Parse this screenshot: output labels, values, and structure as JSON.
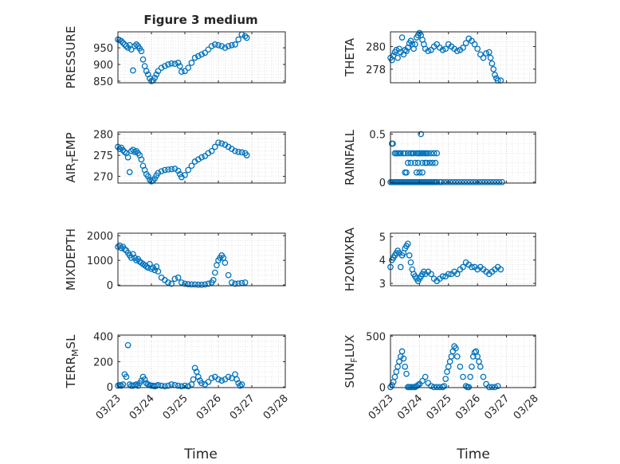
{
  "figure": {
    "title": "Figure 3 medium",
    "xlabel": "Time"
  },
  "chart_data": [
    {
      "id": "pressure",
      "type": "scatter",
      "ylabel": "PRESSURE",
      "ylabel_sub": null,
      "ylabel_tail": null,
      "title": "Figure 3 medium",
      "ylim": [
        845,
        998
      ],
      "yticks": [
        850,
        900,
        950
      ],
      "xlim": [
        "03/23",
        "03/28"
      ],
      "xticks": [
        "03/23",
        "03/24",
        "03/25",
        "03/26",
        "03/27",
        "03/28"
      ],
      "xticklabels_visible": false,
      "grid": true,
      "marker": "open circle",
      "color": "#0072bd",
      "x": [
        0.0,
        0.05,
        0.1,
        0.15,
        0.2,
        0.25,
        0.3,
        0.35,
        0.4,
        0.45,
        0.5,
        0.55,
        0.6,
        0.65,
        0.7,
        0.75,
        0.8,
        0.85,
        0.9,
        0.95,
        1.0,
        1.05,
        1.1,
        1.15,
        1.2,
        1.3,
        1.4,
        1.5,
        1.6,
        1.7,
        1.8,
        1.85,
        1.9,
        2.0,
        2.1,
        2.2,
        2.3,
        2.4,
        2.5,
        2.6,
        2.7,
        2.8,
        2.9,
        3.0,
        3.1,
        3.2,
        3.3,
        3.4,
        3.5,
        3.6,
        3.7,
        3.8,
        3.85
      ],
      "y": [
        975,
        973,
        970,
        965,
        960,
        955,
        950,
        958,
        945,
        882,
        955,
        960,
        955,
        948,
        940,
        915,
        895,
        880,
        870,
        858,
        850,
        852,
        860,
        870,
        880,
        890,
        895,
        900,
        903,
        902,
        905,
        895,
        878,
        880,
        890,
        905,
        920,
        925,
        930,
        935,
        945,
        955,
        960,
        958,
        955,
        950,
        955,
        958,
        960,
        975,
        990,
        985,
        980
      ]
    },
    {
      "id": "theta",
      "type": "scatter",
      "ylabel": "THETA",
      "ylabel_sub": null,
      "ylabel_tail": null,
      "ylim": [
        276.8,
        281.3
      ],
      "yticks": [
        278,
        280
      ],
      "xlim": [
        "03/23",
        "03/28"
      ],
      "xticks": [
        "03/23",
        "03/24",
        "03/25",
        "03/26",
        "03/27",
        "03/28"
      ],
      "xticklabels_visible": false,
      "grid": true,
      "marker": "open circle",
      "color": "#0072bd",
      "x": [
        0.0,
        0.05,
        0.1,
        0.15,
        0.2,
        0.25,
        0.3,
        0.35,
        0.4,
        0.45,
        0.5,
        0.55,
        0.6,
        0.65,
        0.7,
        0.75,
        0.8,
        0.85,
        0.9,
        0.95,
        1.0,
        1.05,
        1.1,
        1.15,
        1.2,
        1.3,
        1.4,
        1.5,
        1.6,
        1.7,
        1.8,
        1.9,
        2.0,
        2.1,
        2.2,
        2.3,
        2.4,
        2.5,
        2.6,
        2.7,
        2.8,
        2.9,
        3.0,
        3.1,
        3.2,
        3.3,
        3.4,
        3.45,
        3.5,
        3.55,
        3.6,
        3.65,
        3.7,
        3.8
      ],
      "y": [
        279.0,
        278.8,
        279.2,
        279.5,
        279.7,
        279.0,
        279.8,
        279.5,
        280.8,
        279.3,
        279.7,
        279.6,
        279.9,
        280.3,
        280.5,
        280.2,
        279.8,
        280.2,
        280.8,
        281.0,
        281.2,
        281.0,
        280.6,
        280.2,
        279.8,
        279.6,
        279.7,
        280.0,
        280.2,
        279.9,
        279.7,
        279.8,
        280.2,
        280.0,
        279.8,
        279.6,
        279.7,
        279.9,
        280.3,
        280.7,
        280.5,
        280.2,
        279.8,
        279.3,
        279.0,
        279.4,
        279.5,
        279.0,
        278.5,
        278.0,
        277.5,
        277.2,
        277.0,
        277.0
      ]
    },
    {
      "id": "air_temp",
      "type": "scatter",
      "ylabel": "AIR",
      "ylabel_sub": "T",
      "ylabel_tail": "EMP",
      "ylim": [
        268.4,
        280.5
      ],
      "yticks": [
        270,
        275,
        280
      ],
      "xlim": [
        "03/23",
        "03/28"
      ],
      "xticks": [
        "03/23",
        "03/24",
        "03/25",
        "03/26",
        "03/27",
        "03/28"
      ],
      "xticklabels_visible": false,
      "grid": true,
      "marker": "open circle",
      "color": "#0072bd",
      "x": [
        0.0,
        0.05,
        0.1,
        0.15,
        0.2,
        0.25,
        0.3,
        0.35,
        0.4,
        0.45,
        0.5,
        0.55,
        0.6,
        0.65,
        0.7,
        0.75,
        0.8,
        0.85,
        0.9,
        0.95,
        1.0,
        1.05,
        1.1,
        1.15,
        1.2,
        1.3,
        1.4,
        1.5,
        1.6,
        1.7,
        1.8,
        1.85,
        1.9,
        2.0,
        2.1,
        2.2,
        2.3,
        2.4,
        2.5,
        2.6,
        2.7,
        2.8,
        2.9,
        3.0,
        3.1,
        3.2,
        3.3,
        3.4,
        3.5,
        3.6,
        3.7,
        3.8,
        3.85
      ],
      "y": [
        277.0,
        276.5,
        276.8,
        276.2,
        275.8,
        275.5,
        274.5,
        271.0,
        276.0,
        276.3,
        275.8,
        276.0,
        275.5,
        275.0,
        274.0,
        272.5,
        271.5,
        270.5,
        270.0,
        269.2,
        268.8,
        269.0,
        269.5,
        270.2,
        270.8,
        271.2,
        271.5,
        271.6,
        271.7,
        271.8,
        271.3,
        270.5,
        269.8,
        270.3,
        271.5,
        272.5,
        273.5,
        274.0,
        274.5,
        274.8,
        275.5,
        276.0,
        277.0,
        278.0,
        277.8,
        277.5,
        277.0,
        276.5,
        276.0,
        275.8,
        275.7,
        275.5,
        275.0
      ]
    },
    {
      "id": "rainfall",
      "type": "scatter",
      "ylabel": "RAINFALL",
      "ylabel_sub": null,
      "ylabel_tail": null,
      "ylim": [
        -0.01,
        0.52
      ],
      "yticks": [
        0,
        0.5
      ],
      "xlim": [
        "03/23",
        "03/28"
      ],
      "xticks": [
        "03/23",
        "03/24",
        "03/25",
        "03/26",
        "03/27",
        "03/28"
      ],
      "xticklabels_visible": false,
      "grid": true,
      "marker": "open circle",
      "color": "#0072bd",
      "x": [
        0.0,
        0.05,
        0.1,
        0.15,
        0.2,
        0.25,
        0.3,
        0.35,
        0.4,
        0.45,
        0.5,
        0.55,
        0.6,
        0.65,
        0.7,
        0.75,
        0.8,
        0.85,
        0.9,
        0.95,
        1.0,
        1.05,
        1.1,
        1.15,
        1.2,
        1.25,
        1.3,
        1.35,
        1.4,
        1.45,
        1.5,
        1.55,
        1.6,
        1.7,
        0.05,
        0.08,
        0.15,
        0.2,
        0.25,
        0.3,
        0.35,
        0.45,
        0.5,
        0.6,
        0.7,
        0.75,
        0.8,
        0.9,
        0.95,
        1.0,
        1.05,
        1.1,
        1.15,
        1.2,
        1.25,
        1.3,
        1.4,
        1.5,
        1.6,
        0.6,
        0.7,
        0.85,
        0.95,
        1.1,
        1.2,
        1.25,
        1.35,
        1.45,
        1.55,
        0.5,
        0.55,
        0.9,
        1.0,
        1.1,
        1.75,
        1.85,
        1.95,
        2.05,
        2.15,
        2.25,
        2.35,
        2.45,
        2.55,
        2.65,
        2.75,
        2.85,
        2.95,
        3.05,
        3.15,
        3.25,
        3.35,
        3.45,
        3.55,
        3.65,
        3.75,
        3.85
      ],
      "y": [
        0,
        0,
        0,
        0,
        0,
        0,
        0,
        0,
        0,
        0,
        0,
        0,
        0,
        0,
        0,
        0,
        0,
        0,
        0,
        0,
        0,
        0,
        0,
        0,
        0,
        0,
        0,
        0,
        0,
        0,
        0,
        0,
        0,
        0,
        0.4,
        0.4,
        0.3,
        0.3,
        0.3,
        0.3,
        0.3,
        0.3,
        0.3,
        0.3,
        0.3,
        0.3,
        0.3,
        0.3,
        0.3,
        0.3,
        0.3,
        0.3,
        0.3,
        0.3,
        0.3,
        0.3,
        0.3,
        0.3,
        0.3,
        0.2,
        0.2,
        0.2,
        0.2,
        0.2,
        0.2,
        0.2,
        0.2,
        0.2,
        0.2,
        0.1,
        0.1,
        0.1,
        0.1,
        0.1,
        0,
        0,
        0,
        0,
        0,
        0,
        0,
        0,
        0,
        0,
        0,
        0,
        0,
        0,
        0,
        0,
        0,
        0,
        0,
        0,
        0,
        0
      ],
      "outliers": [
        {
          "x": 1.05,
          "y": 0.5
        }
      ]
    },
    {
      "id": "mixdepth",
      "type": "scatter",
      "ylabel": "MIXDEPTH",
      "ylabel_sub": null,
      "ylabel_tail": null,
      "ylim": [
        -30,
        2100
      ],
      "yticks": [
        0,
        1000,
        2000
      ],
      "xlim": [
        "03/23",
        "03/28"
      ],
      "xticks": [
        "03/23",
        "03/24",
        "03/25",
        "03/26",
        "03/27",
        "03/28"
      ],
      "xticklabels_visible": false,
      "grid": true,
      "marker": "open circle",
      "color": "#0072bd",
      "x": [
        0.0,
        0.05,
        0.1,
        0.15,
        0.2,
        0.25,
        0.3,
        0.35,
        0.4,
        0.45,
        0.5,
        0.55,
        0.6,
        0.65,
        0.7,
        0.75,
        0.8,
        0.85,
        0.9,
        0.95,
        1.0,
        1.05,
        1.1,
        1.15,
        1.2,
        1.3,
        1.4,
        1.5,
        1.6,
        1.7,
        1.8,
        1.9,
        2.0,
        2.1,
        2.2,
        2.3,
        2.4,
        2.5,
        2.6,
        2.7,
        2.8,
        2.85,
        2.9,
        2.95,
        3.0,
        3.05,
        3.1,
        3.15,
        3.2,
        3.3,
        3.4,
        3.5,
        3.6,
        3.7,
        3.8
      ],
      "y": [
        1550,
        1600,
        1500,
        1550,
        1450,
        1400,
        1300,
        1200,
        1100,
        1250,
        1100,
        1000,
        1050,
        950,
        900,
        850,
        800,
        750,
        700,
        850,
        650,
        700,
        600,
        750,
        550,
        300,
        200,
        100,
        50,
        250,
        300,
        100,
        50,
        30,
        20,
        20,
        10,
        10,
        20,
        50,
        100,
        200,
        500,
        800,
        1000,
        1100,
        1200,
        1100,
        900,
        400,
        100,
        50,
        60,
        80,
        100
      ]
    },
    {
      "id": "h2omixra",
      "type": "scatter",
      "ylabel": "H2OMIXRA",
      "ylabel_sub": null,
      "ylabel_tail": null,
      "ylim": [
        2.9,
        5.15
      ],
      "yticks": [
        3,
        4,
        5
      ],
      "xlim": [
        "03/23",
        "03/28"
      ],
      "xticks": [
        "03/23",
        "03/24",
        "03/25",
        "03/26",
        "03/27",
        "03/28"
      ],
      "xticklabels_visible": false,
      "grid": true,
      "marker": "open circle",
      "color": "#0072bd",
      "x": [
        0.0,
        0.05,
        0.1,
        0.15,
        0.2,
        0.25,
        0.3,
        0.35,
        0.4,
        0.45,
        0.5,
        0.55,
        0.6,
        0.65,
        0.7,
        0.75,
        0.8,
        0.85,
        0.9,
        0.95,
        1.0,
        1.05,
        1.1,
        1.15,
        1.2,
        1.3,
        1.4,
        1.5,
        1.6,
        1.7,
        1.8,
        1.9,
        2.0,
        2.1,
        2.2,
        2.3,
        2.4,
        2.5,
        2.6,
        2.7,
        2.8,
        2.9,
        3.0,
        3.1,
        3.2,
        3.3,
        3.4,
        3.5,
        3.6,
        3.7,
        3.8
      ],
      "y": [
        3.7,
        4.0,
        4.1,
        4.2,
        4.3,
        4.4,
        4.3,
        3.7,
        4.2,
        4.3,
        4.5,
        4.6,
        4.7,
        4.2,
        3.9,
        3.6,
        3.4,
        3.3,
        3.2,
        3.1,
        3.2,
        3.3,
        3.4,
        3.5,
        3.4,
        3.5,
        3.4,
        3.2,
        3.1,
        3.2,
        3.3,
        3.3,
        3.4,
        3.4,
        3.5,
        3.4,
        3.6,
        3.7,
        3.9,
        3.8,
        3.7,
        3.7,
        3.6,
        3.7,
        3.6,
        3.5,
        3.4,
        3.5,
        3.6,
        3.7,
        3.6
      ]
    },
    {
      "id": "terr_msl",
      "type": "scatter",
      "ylabel": "TERR",
      "ylabel_sub": "M",
      "ylabel_tail": "SL",
      "ylim": [
        -5,
        410
      ],
      "yticks": [
        0,
        200,
        400
      ],
      "xlim": [
        "03/23",
        "03/28"
      ],
      "xticks": [
        "03/23",
        "03/24",
        "03/25",
        "03/26",
        "03/27",
        "03/28"
      ],
      "xticklabels_visible": true,
      "grid": true,
      "marker": "open circle",
      "color": "#0072bd",
      "x": [
        0.0,
        0.05,
        0.1,
        0.15,
        0.2,
        0.25,
        0.3,
        0.35,
        0.4,
        0.45,
        0.5,
        0.55,
        0.6,
        0.65,
        0.7,
        0.75,
        0.8,
        0.85,
        0.9,
        0.95,
        1.0,
        1.05,
        1.1,
        1.15,
        1.2,
        1.3,
        1.4,
        1.5,
        1.6,
        1.7,
        1.8,
        1.9,
        2.0,
        2.1,
        2.2,
        2.25,
        2.3,
        2.35,
        2.4,
        2.45,
        2.5,
        2.6,
        2.7,
        2.8,
        2.9,
        3.0,
        3.1,
        3.2,
        3.3,
        3.4,
        3.5,
        3.55,
        3.6,
        3.65,
        3.7
      ],
      "y": [
        10,
        15,
        10,
        20,
        100,
        80,
        330,
        20,
        10,
        10,
        15,
        20,
        10,
        30,
        50,
        80,
        60,
        30,
        20,
        15,
        10,
        10,
        5,
        10,
        15,
        10,
        5,
        10,
        20,
        15,
        10,
        5,
        10,
        5,
        20,
        60,
        150,
        120,
        80,
        50,
        30,
        20,
        40,
        70,
        80,
        60,
        50,
        60,
        80,
        70,
        100,
        60,
        30,
        10,
        20
      ]
    },
    {
      "id": "sun_flux",
      "type": "scatter",
      "ylabel": "SUN",
      "ylabel_sub": "F",
      "ylabel_tail": "LUX",
      "ylim": [
        -5,
        510
      ],
      "yticks": [
        0,
        500
      ],
      "xlim": [
        "03/23",
        "03/28"
      ],
      "xticks": [
        "03/23",
        "03/24",
        "03/25",
        "03/26",
        "03/27",
        "03/28"
      ],
      "xticklabels_visible": true,
      "grid": true,
      "marker": "open circle",
      "color": "#0072bd",
      "x": [
        0.0,
        0.05,
        0.1,
        0.15,
        0.2,
        0.25,
        0.3,
        0.35,
        0.4,
        0.45,
        0.5,
        0.55,
        0.6,
        0.65,
        0.7,
        0.75,
        0.8,
        0.85,
        0.9,
        0.95,
        1.0,
        1.1,
        1.2,
        1.3,
        1.4,
        1.5,
        1.6,
        1.7,
        1.8,
        1.85,
        1.9,
        1.95,
        2.0,
        2.05,
        2.1,
        2.15,
        2.2,
        2.25,
        2.3,
        2.4,
        2.5,
        2.6,
        2.65,
        2.7,
        2.75,
        2.8,
        2.85,
        2.9,
        2.95,
        3.0,
        3.05,
        3.1,
        3.2,
        3.3,
        3.4,
        3.5,
        3.6,
        3.7
      ],
      "y": [
        0,
        20,
        50,
        100,
        150,
        200,
        250,
        300,
        350,
        280,
        200,
        130,
        0,
        0,
        0,
        0,
        0,
        0,
        10,
        20,
        30,
        60,
        100,
        40,
        10,
        0,
        0,
        0,
        0,
        10,
        80,
        150,
        200,
        250,
        300,
        350,
        400,
        380,
        300,
        200,
        100,
        10,
        0,
        0,
        100,
        200,
        300,
        340,
        350,
        300,
        250,
        200,
        100,
        30,
        0,
        0,
        0,
        10
      ]
    }
  ]
}
